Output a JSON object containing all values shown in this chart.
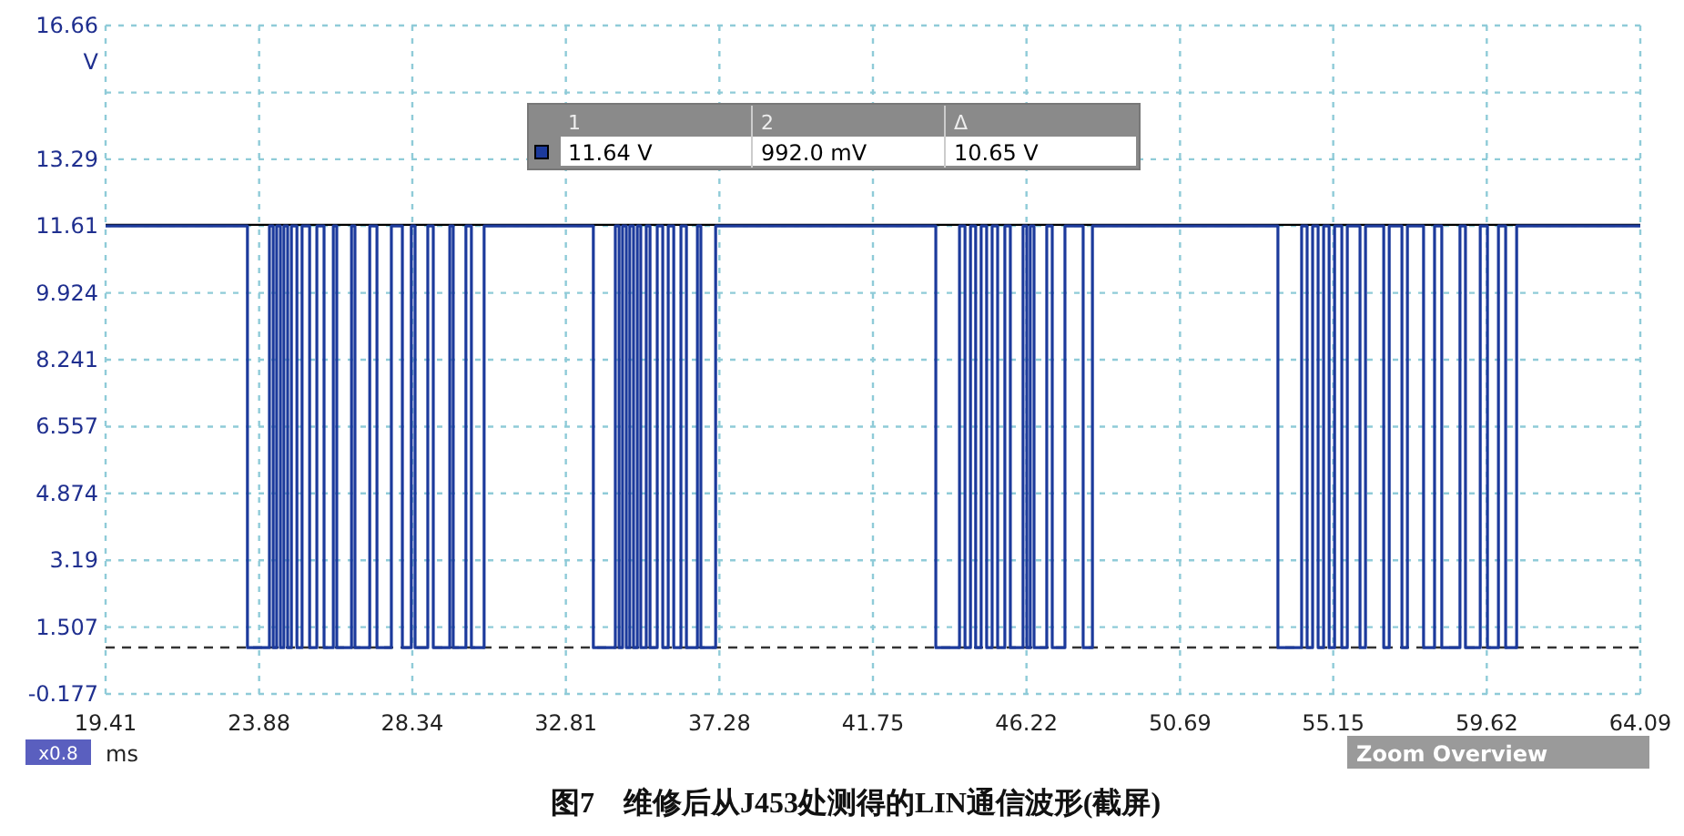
{
  "chart_data": {
    "type": "step",
    "title": "图7　维修后从J453处测得的LIN通信波形(截屏)",
    "xlabel": "ms",
    "ylabel": "V",
    "xlim": [
      19.41,
      64.09
    ],
    "xticks": [
      19.41,
      23.88,
      28.34,
      32.81,
      37.28,
      41.75,
      46.22,
      50.69,
      55.15,
      59.62,
      64.09
    ],
    "ylim": [
      -0.177,
      16.66
    ],
    "yticks": [
      -0.177,
      1.507,
      3.19,
      4.874,
      6.557,
      8.241,
      9.924,
      11.61,
      13.29,
      {
        "value": 14.97,
        "label": null
      },
      16.66
    ],
    "grid": true,
    "line_style": "solid",
    "series": [
      {
        "color": "#1c3a9c",
        "x": [
          19.41,
          23.54,
          24.18,
          24.29,
          24.39,
          24.5,
          24.6,
          24.71,
          24.82,
          24.98,
          25.13,
          25.35,
          25.56,
          25.77,
          26.04,
          26.14,
          26.57,
          26.67,
          27.1,
          27.31,
          27.73,
          28.05,
          28.31,
          28.42,
          28.79,
          28.95,
          29.43,
          29.53,
          29.9,
          30.06,
          30.43,
          33.61,
          34.25,
          34.36,
          34.46,
          34.57,
          34.67,
          34.78,
          34.89,
          34.99,
          35.15,
          35.26,
          35.47,
          35.63,
          35.79,
          35.95,
          36.16,
          36.32,
          36.64,
          36.74,
          37.17,
          43.58,
          44.27,
          44.43,
          44.59,
          44.74,
          44.9,
          45.06,
          45.22,
          45.38,
          45.59,
          45.75,
          46.12,
          46.23,
          46.33,
          46.44,
          46.81,
          46.97,
          47.34,
          47.87,
          48.14,
          53.54,
          54.23,
          54.39,
          54.55,
          54.71,
          54.87,
          55.03,
          55.19,
          55.4,
          55.56,
          55.93,
          56.09,
          56.62,
          56.78,
          57.15,
          57.31,
          57.78,
          58.1,
          58.31,
          58.84,
          59.0,
          59.43,
          59.64,
          59.96,
          60.17,
          60.49,
          64.09
        ],
        "values": [
          11.61,
          0.99,
          11.61,
          0.99,
          11.61,
          0.99,
          11.61,
          0.99,
          11.61,
          0.99,
          11.61,
          0.99,
          11.61,
          0.99,
          11.61,
          0.99,
          11.61,
          0.99,
          11.61,
          0.99,
          11.61,
          0.99,
          11.61,
          0.99,
          11.61,
          0.99,
          11.61,
          0.99,
          11.61,
          0.99,
          11.61,
          0.99,
          11.61,
          0.99,
          11.61,
          0.99,
          11.61,
          0.99,
          11.61,
          0.99,
          11.61,
          0.99,
          11.61,
          0.99,
          11.61,
          0.99,
          11.61,
          0.99,
          11.61,
          0.99,
          11.61,
          0.99,
          11.61,
          0.99,
          11.61,
          0.99,
          11.61,
          0.99,
          11.61,
          0.99,
          11.61,
          0.99,
          11.61,
          0.99,
          11.61,
          0.99,
          11.61,
          0.99,
          11.61,
          0.99,
          11.61,
          0.99,
          11.61,
          0.99,
          11.61,
          0.99,
          11.61,
          0.99,
          11.61,
          0.99,
          11.61,
          0.99,
          11.61,
          0.99,
          11.61,
          0.99,
          11.61,
          0.99,
          11.61,
          0.99,
          11.61,
          0.99,
          11.61,
          0.99,
          11.61,
          0.99,
          11.61,
          11.61
        ]
      }
    ],
    "ref_lines": [
      {
        "axis": "y",
        "value": 11.64,
        "label": null,
        "color": "#000000",
        "line_style": "solid"
      },
      {
        "axis": "y",
        "value": 0.992,
        "label": null,
        "color": "#333333",
        "line_style": "dashed"
      }
    ],
    "annotations": [
      "1",
      "2",
      "Δ",
      "11.64 V",
      "992.0 mV",
      "10.65 V",
      "x0.8",
      "Zoom Overview"
    ]
  }
}
